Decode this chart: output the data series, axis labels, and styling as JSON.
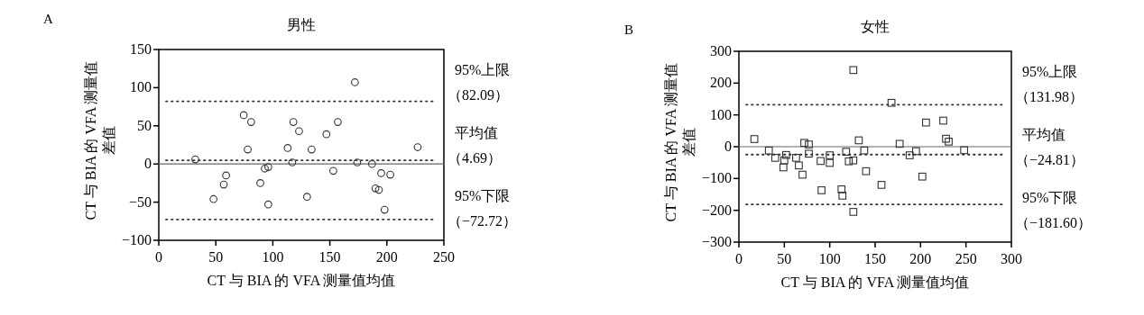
{
  "chart_data": [
    {
      "type": "scatter",
      "title": "男性",
      "xlabel": "CT 与 BIA 的 VFA 测量值均值",
      "ylabel": "CT 与 BIA 的 VFA 测量值差值",
      "annotations": [
        "A"
      ],
      "marker": "circle",
      "grid": false,
      "xlim": [
        0,
        250
      ],
      "xticks": [
        0,
        50,
        100,
        150,
        200,
        250
      ],
      "ylim": [
        -100,
        150
      ],
      "yticks": [
        {
          "value": -100,
          "label": "−100"
        },
        {
          "value": -50,
          "label": "−50"
        },
        0,
        50,
        100,
        150
      ],
      "ref_lines": [
        {
          "axis": "y",
          "value": 82.09,
          "label": "95%上限（82.09）",
          "line_style": "dotted"
        },
        {
          "axis": "y",
          "value": 4.69,
          "label": "平均值（4.69）",
          "line_style": "dotted"
        },
        {
          "axis": "y",
          "value": -72.72,
          "label": "95%下限（−72.72）",
          "line_style": "dotted"
        },
        {
          "axis": "y",
          "value": 0,
          "line_style": "solid"
        }
      ],
      "series": [
        {
          "color": "#333333",
          "x": [
            32,
            48,
            57,
            59,
            74.5,
            78,
            81,
            89,
            93,
            96,
            96,
            113,
            117,
            118,
            123,
            130,
            134,
            147,
            153,
            157,
            172,
            174,
            187,
            190,
            193,
            195,
            198,
            203,
            227
          ],
          "values": [
            6,
            -46,
            -27,
            -15,
            64,
            19,
            55,
            -25,
            -6,
            -4,
            -53,
            21,
            2,
            55,
            43,
            -43,
            19,
            39,
            -9,
            55,
            107,
            2,
            0,
            -32,
            -34,
            -12,
            -60,
            -14,
            22
          ]
        }
      ]
    },
    {
      "type": "scatter",
      "title": "女性",
      "xlabel": "CT 与 BIA 的 VFA 测量值均值",
      "ylabel": "CT 与 BIA 的 VFA 测量值差值",
      "annotations": [
        "B"
      ],
      "marker": "square",
      "grid": false,
      "xlim": [
        0,
        300
      ],
      "xticks": [
        0,
        50,
        100,
        150,
        200,
        250,
        300
      ],
      "ylim": [
        -300,
        300
      ],
      "yticks": [
        {
          "value": -300,
          "label": "−300"
        },
        {
          "value": -200,
          "label": "−200"
        },
        {
          "value": -100,
          "label": "−100"
        },
        0,
        100,
        200,
        300
      ],
      "ref_lines": [
        {
          "axis": "y",
          "value": 131.98,
          "label": "95%上限（131.98）",
          "line_style": "dotted"
        },
        {
          "axis": "y",
          "value": -24.81,
          "label": "平均值（−24.81）",
          "line_style": "dotted"
        },
        {
          "axis": "y",
          "value": -181.6,
          "label": "95%下限（−181.60）",
          "line_style": "dotted"
        },
        {
          "axis": "y",
          "value": 0,
          "line_style": "solid"
        }
      ],
      "series": [
        {
          "color": "#333333",
          "x": [
            17,
            33,
            40,
            49,
            50,
            52,
            63,
            66,
            70,
            72,
            77,
            77,
            90,
            91,
            100,
            100,
            113,
            114,
            118,
            121,
            126,
            126,
            126,
            132,
            138,
            140,
            157,
            168,
            177,
            188,
            195,
            202,
            206,
            225,
            228,
            231,
            248
          ],
          "values": [
            24,
            -12,
            -35,
            -65,
            -43,
            -26,
            -35,
            -59,
            -88,
            12,
            7,
            -22,
            -45,
            -137,
            -27,
            -51,
            -134,
            -154,
            -16,
            -46,
            241,
            -43,
            -205,
            20,
            -12,
            -77,
            -120,
            138,
            9,
            -27,
            -14,
            -94,
            76,
            82,
            25,
            16,
            -11
          ]
        }
      ]
    }
  ]
}
